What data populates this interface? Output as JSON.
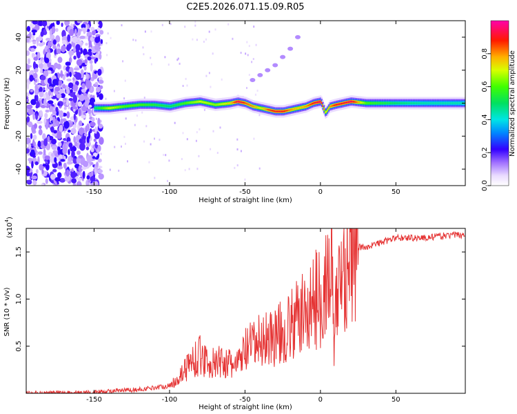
{
  "title": "C2E5.2026.071.15.09.R05",
  "chart_data": [
    {
      "type": "heatmap",
      "title": "C2E5.2026.071.15.09.R05",
      "xlabel": "Height of straight line (km)",
      "ylabel": "Frequency (Hz)",
      "xlim": [
        -195,
        96
      ],
      "ylim": [
        -50,
        50
      ],
      "xticks": [
        -150,
        -100,
        -50,
        0,
        50
      ],
      "yticks": [
        -40,
        -20,
        0,
        20,
        40
      ],
      "colorbar": {
        "label": "Normalized spectral amplitude",
        "range": [
          0,
          1
        ],
        "ticks": [
          0.0,
          0.2,
          0.4,
          0.6,
          0.8
        ]
      },
      "ridge": {
        "x": [
          -150,
          -140,
          -130,
          -120,
          -110,
          -100,
          -90,
          -80,
          -70,
          -60,
          -55,
          -50,
          -45,
          -40,
          -35,
          -30,
          -25,
          -20,
          -15,
          -10,
          -5,
          0,
          3,
          6,
          10,
          15,
          20,
          30,
          50,
          70,
          96
        ],
        "y": [
          -3,
          -3,
          -2,
          -1,
          -1,
          -2,
          0,
          1,
          -1,
          0,
          1,
          0,
          -2,
          -3,
          -4,
          -5,
          -5,
          -4,
          -3,
          -2,
          0,
          1,
          -6,
          -2,
          -1,
          0,
          1,
          0,
          0,
          0,
          0
        ],
        "amplitude": [
          0.5,
          0.7,
          0.6,
          0.6,
          0.55,
          0.5,
          0.6,
          0.7,
          0.65,
          0.75,
          0.95,
          0.85,
          0.8,
          0.7,
          0.85,
          0.9,
          0.9,
          0.8,
          0.75,
          0.8,
          0.9,
          0.95,
          0.7,
          0.8,
          0.9,
          0.9,
          0.95,
          0.6,
          0.5,
          0.45,
          0.45
        ]
      },
      "arc": {
        "x": [
          -45,
          -40,
          -35,
          -30,
          -25,
          -20,
          -15
        ],
        "y": [
          14,
          17,
          20,
          23,
          28,
          33,
          40
        ]
      }
    },
    {
      "type": "line",
      "xlabel": "Height of straight line (km)",
      "ylabel": "SNR (10 * v/v)",
      "y_multiplier": "(x10",
      "y_multiplier_exp": "4",
      "y_multiplier_close": ")",
      "xlim": [
        -195,
        96
      ],
      "ylim": [
        0,
        17500
      ],
      "xticks": [
        -150,
        -100,
        -50,
        0,
        50
      ],
      "yticks": [
        0.5,
        1.0,
        1.5
      ],
      "series": [
        {
          "name": "SNR",
          "color": "#e53333",
          "x": [
            -195,
            -150,
            -120,
            -110,
            -100,
            -95,
            -90,
            -85,
            -80,
            -75,
            -70,
            -65,
            -60,
            -55,
            -50,
            -45,
            -40,
            -35,
            -30,
            -25,
            -20,
            -15,
            -10,
            -5,
            0,
            5,
            8,
            9,
            10,
            12,
            15,
            20,
            25,
            30,
            40,
            50,
            60,
            70,
            80,
            90,
            96
          ],
          "y": [
            0,
            100,
            400,
            600,
            800,
            1500,
            2500,
            3500,
            4000,
            3500,
            3000,
            3500,
            3000,
            3000,
            4500,
            5000,
            5500,
            6000,
            6000,
            6500,
            7000,
            8000,
            8500,
            9500,
            10500,
            12000,
            13500,
            3000,
            8000,
            12000,
            13000,
            14500,
            15500,
            15500,
            16000,
            16500,
            16500,
            16500,
            16700,
            16800,
            16800
          ]
        }
      ]
    }
  ]
}
